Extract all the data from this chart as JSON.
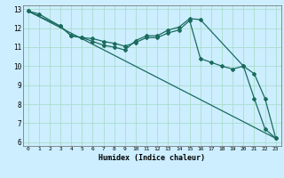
{
  "xlabel": "Humidex (Indice chaleur)",
  "bg_color": "#cceeff",
  "grid_color": "#aaddcc",
  "line_color": "#1a6b5e",
  "xlim": [
    -0.5,
    23.5
  ],
  "ylim": [
    5.8,
    13.2
  ],
  "xticks": [
    0,
    1,
    2,
    3,
    4,
    5,
    6,
    7,
    8,
    9,
    10,
    11,
    12,
    13,
    14,
    15,
    16,
    17,
    18,
    19,
    20,
    21,
    22,
    23
  ],
  "yticks": [
    6,
    7,
    8,
    9,
    10,
    11,
    12,
    13
  ],
  "line1_x": [
    0,
    1,
    3,
    4,
    5,
    6,
    7,
    8,
    9,
    10,
    11,
    12,
    13,
    14,
    15,
    16,
    20,
    21,
    22,
    23
  ],
  "line1_y": [
    12.9,
    12.75,
    12.1,
    11.6,
    11.5,
    11.3,
    11.1,
    11.0,
    10.85,
    11.35,
    11.6,
    11.6,
    11.9,
    12.05,
    12.5,
    12.45,
    10.0,
    9.6,
    8.3,
    6.2
  ],
  "line2_x": [
    0,
    3,
    4,
    5,
    6,
    7,
    8,
    9,
    10,
    11,
    12,
    13,
    14,
    15,
    16,
    17,
    18,
    19,
    20,
    21,
    22,
    23
  ],
  "line2_y": [
    12.9,
    12.1,
    11.6,
    11.5,
    11.45,
    11.3,
    11.2,
    11.05,
    11.25,
    11.5,
    11.5,
    11.75,
    11.9,
    12.4,
    10.4,
    10.2,
    10.0,
    9.85,
    10.0,
    8.3,
    6.7,
    6.2
  ],
  "line3_x": [
    0,
    23
  ],
  "line3_y": [
    12.9,
    6.2
  ]
}
